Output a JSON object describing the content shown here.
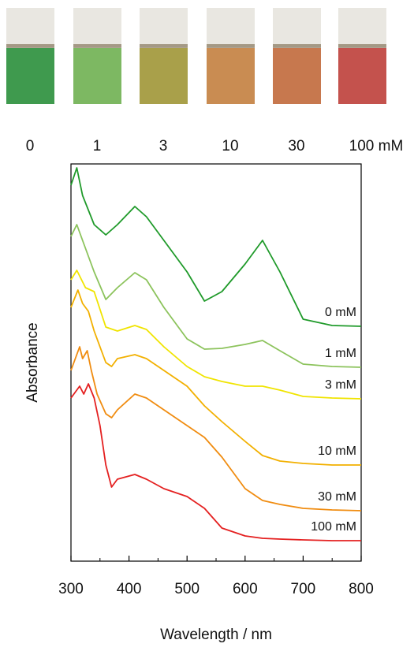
{
  "samples": [
    {
      "label": "0",
      "color": "#3f9a4e"
    },
    {
      "label": "1",
      "color": "#7db862"
    },
    {
      "label": "3",
      "color": "#a9a04a"
    },
    {
      "label": "10",
      "color": "#c98c52"
    },
    {
      "label": "30",
      "color": "#c7784e"
    },
    {
      "label": "100 mM",
      "color": "#c4524d"
    }
  ],
  "chart_data": {
    "type": "line",
    "xlabel": "Wavelength / nm",
    "ylabel": "Absorbance",
    "xlim": [
      300,
      800
    ],
    "xticks": [
      300,
      400,
      500,
      600,
      700,
      800
    ],
    "xminorticks": [
      350,
      450,
      550,
      650,
      750
    ],
    "ylim": [
      0,
      504
    ],
    "series": [
      {
        "name": "0 mM",
        "color": "#1f9a2a",
        "x": [
          300,
          310,
          320,
          340,
          360,
          380,
          410,
          430,
          460,
          500,
          530,
          560,
          600,
          630,
          660,
          700,
          750,
          800
        ],
        "values": [
          477,
          499,
          464,
          427,
          414,
          427,
          450,
          437,
          407,
          367,
          330,
          342,
          377,
          407,
          367,
          307,
          299,
          298
        ]
      },
      {
        "name": "1 mM",
        "color": "#8cc35c",
        "x": [
          300,
          310,
          320,
          340,
          360,
          380,
          410,
          430,
          460,
          500,
          530,
          560,
          600,
          630,
          660,
          700,
          750,
          800
        ],
        "values": [
          412,
          427,
          407,
          367,
          332,
          347,
          366,
          357,
          322,
          282,
          269,
          270,
          275,
          280,
          267,
          250,
          247,
          246
        ]
      },
      {
        "name": "3 mM",
        "color": "#f0e400",
        "x": [
          300,
          310,
          325,
          340,
          360,
          380,
          410,
          430,
          460,
          500,
          530,
          560,
          600,
          630,
          660,
          700,
          750,
          800
        ],
        "values": [
          357,
          369,
          347,
          342,
          297,
          292,
          299,
          294,
          272,
          247,
          234,
          228,
          222,
          222,
          217,
          209,
          207,
          206
        ]
      },
      {
        "name": "10 mM",
        "color": "#f2b000",
        "x": [
          300,
          312,
          320,
          330,
          340,
          360,
          370,
          380,
          410,
          430,
          460,
          500,
          530,
          560,
          600,
          630,
          660,
          700,
          750,
          800
        ],
        "values": [
          322,
          344,
          327,
          317,
          292,
          252,
          247,
          257,
          262,
          257,
          242,
          222,
          197,
          177,
          152,
          134,
          127,
          124,
          122,
          122
        ]
      },
      {
        "name": "30 mM",
        "color": "#f08c10",
        "x": [
          300,
          315,
          320,
          328,
          335,
          345,
          360,
          370,
          380,
          410,
          430,
          460,
          500,
          530,
          560,
          600,
          630,
          660,
          700,
          750,
          800
        ],
        "values": [
          242,
          272,
          257,
          267,
          242,
          212,
          187,
          182,
          192,
          212,
          207,
          192,
          172,
          157,
          132,
          92,
          77,
          72,
          67,
          65,
          64
        ]
      },
      {
        "name": "100 mM",
        "color": "#e42020",
        "x": [
          300,
          315,
          322,
          330,
          340,
          350,
          360,
          370,
          380,
          410,
          430,
          460,
          500,
          530,
          560,
          600,
          630,
          660,
          700,
          750,
          800
        ],
        "values": [
          207,
          222,
          212,
          225,
          207,
          172,
          122,
          94,
          104,
          110,
          104,
          92,
          82,
          67,
          42,
          32,
          29,
          28,
          27,
          26,
          26
        ]
      }
    ]
  }
}
